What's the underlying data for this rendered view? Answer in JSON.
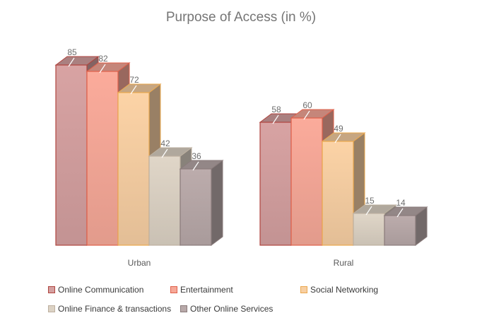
{
  "chart_data": {
    "type": "bar",
    "title": "Purpose of Access (in %)",
    "categories": [
      "Urban",
      "Rural"
    ],
    "series": [
      {
        "name": "Online Communication",
        "values": [
          85,
          58
        ],
        "color": "#d4a0a0",
        "edge": "#b0453f"
      },
      {
        "name": "Entertainment",
        "values": [
          82,
          60
        ],
        "color": "#f6a898",
        "edge": "#e0604a"
      },
      {
        "name": "Social Networking",
        "values": [
          72,
          49
        ],
        "color": "#f7cfa3",
        "edge": "#eba84e"
      },
      {
        "name": "Online Finance & transactions",
        "values": [
          42,
          15
        ],
        "color": "#dcd2c4",
        "edge": "#bdb0a0"
      },
      {
        "name": "Other Online Services",
        "values": [
          36,
          14
        ],
        "color": "#b8a9a9",
        "edge": "#8a7b7b"
      }
    ],
    "ylim": [
      0,
      100
    ],
    "grid": false,
    "legend_position": "bottom",
    "style": "3d-column"
  }
}
